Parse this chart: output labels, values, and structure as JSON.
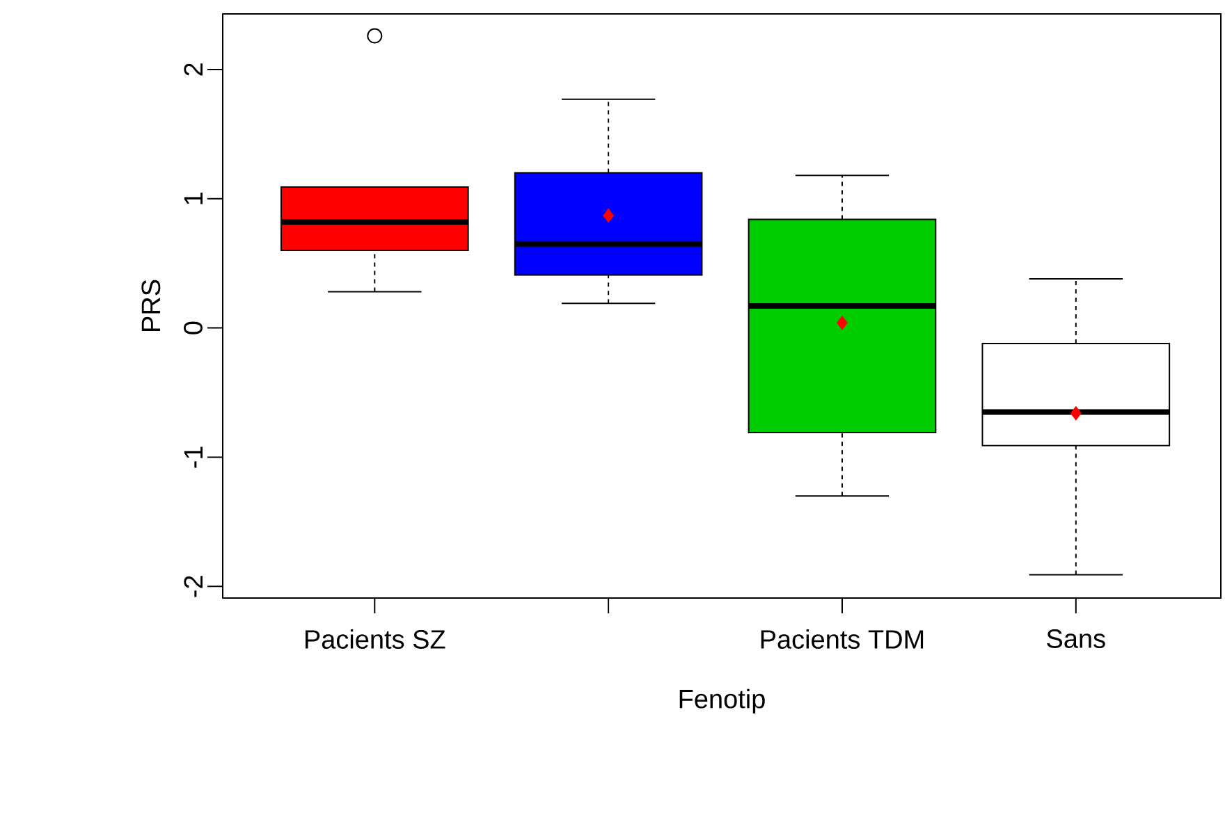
{
  "chart_data": {
    "type": "box",
    "xlabel": "Fenotip",
    "ylabel": "PRS",
    "categories": [
      "Pacients SZ",
      null,
      "Pacients TDM",
      "Sans"
    ],
    "colors": [
      "#ff0000",
      "#0000ff",
      "#00cd00",
      "#ffffff"
    ],
    "boxes": [
      {
        "low": 0.28,
        "q1": 0.6,
        "median": 0.82,
        "q3": 1.09,
        "high": 1.09,
        "outliers": [
          2.26
        ]
      },
      {
        "low": 0.19,
        "q1": 0.41,
        "median": 0.65,
        "q3": 1.2,
        "high": 1.77,
        "mean": 0.87
      },
      {
        "low": -1.3,
        "q1": -0.81,
        "median": 0.17,
        "q3": 0.84,
        "high": 1.18,
        "mean": 0.04
      },
      {
        "low": -1.91,
        "q1": -0.91,
        "median": -0.65,
        "q3": -0.12,
        "high": 0.38,
        "mean": -0.66
      }
    ],
    "ylim": [
      -2.09,
      2.43
    ],
    "yticks": [
      -2,
      -1,
      0,
      1,
      2
    ]
  }
}
